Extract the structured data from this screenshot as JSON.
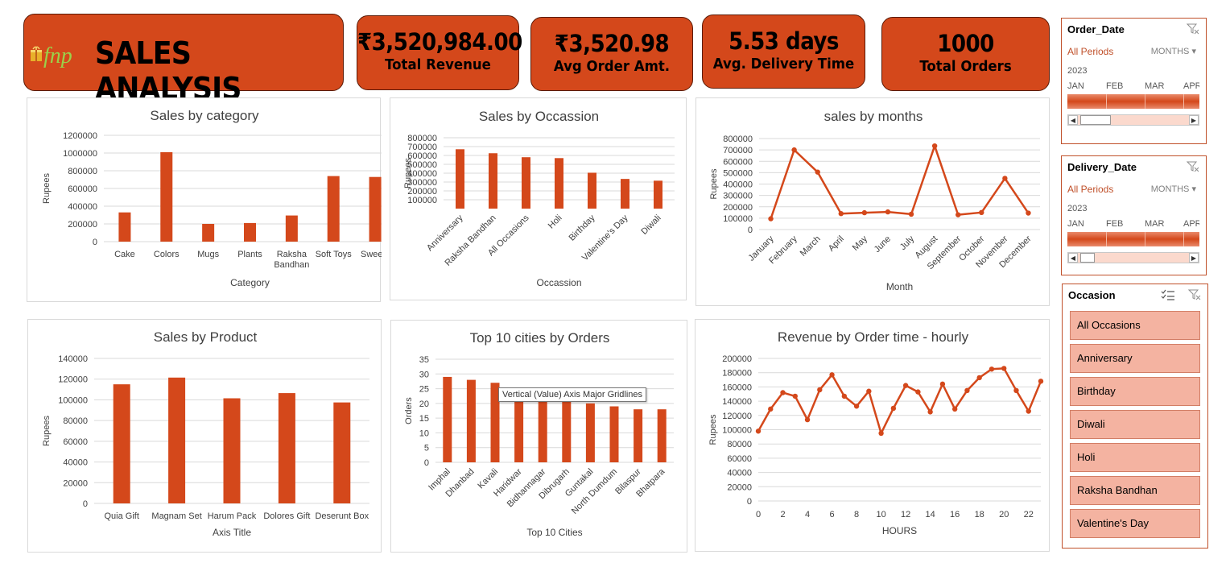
{
  "dashboard": {
    "title": "SALES ANALYSIS",
    "logo_text": "fnp",
    "brand_color": "#d4481b",
    "kpis": [
      {
        "value": "₹3,520,984.00",
        "label": "Total Revenue"
      },
      {
        "value": "₹3,520.98",
        "label": "Avg Order Amt."
      },
      {
        "value": "5.53 days",
        "label": "Avg. Delivery Time"
      },
      {
        "value": "1000",
        "label": "Total Orders"
      }
    ]
  },
  "slicers": {
    "order_date": {
      "header": "Order_Date",
      "period": "All Periods",
      "unit": "MONTHS",
      "year": "2023",
      "months": [
        "JAN",
        "FEB",
        "MAR",
        "APR"
      ],
      "icon": "clear-filter-icon"
    },
    "delivery_date": {
      "header": "Delivery_Date",
      "period": "All Periods",
      "unit": "MONTHS",
      "year": "2023",
      "months": [
        "JAN",
        "FEB",
        "MAR",
        "APR"
      ],
      "icon": "clear-filter-icon"
    },
    "occasion": {
      "header": "Occasion",
      "items": [
        "All Occasions",
        "Anniversary",
        "Birthday",
        "Diwali",
        "Holi",
        "Raksha Bandhan",
        "Valentine's Day"
      ],
      "icons": [
        "multi-select-icon",
        "clear-filter-icon"
      ]
    }
  },
  "tooltip": {
    "text": "Vertical (Value) Axis Major Gridlines"
  },
  "chart_data": [
    {
      "id": "cat",
      "type": "bar",
      "title": "Sales by category",
      "xlabel": "Category",
      "ylabel": "Rupees",
      "categories": [
        "Cake",
        "Colors",
        "Mugs",
        "Plants",
        "Raksha Bandhan",
        "Soft Toys",
        "Sweets"
      ],
      "values": [
        330000,
        1010000,
        200000,
        210000,
        295000,
        740000,
        730000
      ],
      "ylim": [
        0,
        1200000
      ],
      "yticks": [
        0,
        200000,
        400000,
        600000,
        800000,
        1000000,
        1200000
      ],
      "grid": true
    },
    {
      "id": "occ",
      "type": "bar",
      "title": "Sales by Occassion",
      "xlabel": "Occassion",
      "ylabel": "Rupees",
      "categories": [
        "Anniversary",
        "Raksha Bandhan",
        "All Occasions",
        "Holi",
        "Birthday",
        "Valentine's Day",
        "Diwali"
      ],
      "values": [
        670000,
        625000,
        580000,
        570000,
        405000,
        335000,
        315000
      ],
      "ylim": [
        0,
        800000
      ],
      "yticks": [
        100000,
        200000,
        300000,
        400000,
        500000,
        600000,
        700000,
        800000
      ],
      "grid": true
    },
    {
      "id": "mon",
      "type": "line",
      "title": "sales by months",
      "xlabel": "Month",
      "ylabel": "Rupees",
      "categories": [
        "January",
        "February",
        "March",
        "April",
        "May",
        "June",
        "July",
        "August",
        "September",
        "October",
        "November",
        "December"
      ],
      "values": [
        95000,
        700000,
        505000,
        140000,
        148000,
        155000,
        135000,
        735000,
        130000,
        150000,
        450000,
        145000
      ],
      "ylim": [
        0,
        800000
      ],
      "yticks": [
        0,
        100000,
        200000,
        300000,
        400000,
        500000,
        600000,
        700000,
        800000
      ],
      "grid": true
    },
    {
      "id": "prod",
      "type": "bar",
      "title": "Sales by Product",
      "xlabel": "Axis Title",
      "ylabel": "Rupees",
      "categories": [
        "Quia Gift",
        "Magnam Set",
        "Harum Pack",
        "Dolores Gift",
        "Deserunt Box"
      ],
      "values": [
        115000,
        121500,
        101500,
        106500,
        97500
      ],
      "ylim": [
        0,
        140000
      ],
      "yticks": [
        0,
        20000,
        40000,
        60000,
        80000,
        100000,
        120000,
        140000
      ],
      "grid": true
    },
    {
      "id": "city",
      "type": "bar",
      "title": "Top 10 cities by Orders",
      "xlabel": "Top 10 Cities",
      "ylabel": "Orders",
      "categories": [
        "Imphal",
        "Dhanbad",
        "Kavali",
        "Haridwar",
        "Bidhannagar",
        "Dibrugarh",
        "Guntakal",
        "North Dumdum",
        "Bilaspur",
        "Bhatpara"
      ],
      "values": [
        29,
        28,
        27,
        24,
        22,
        21,
        20,
        19,
        18,
        18
      ],
      "ylim": [
        0,
        35
      ],
      "yticks": [
        0,
        5,
        10,
        15,
        20,
        25,
        30,
        35
      ],
      "grid": true
    },
    {
      "id": "hour",
      "type": "line",
      "title": "Revenue by Order time - hourly",
      "xlabel": "HOURS",
      "ylabel": "Rupees",
      "x": [
        0,
        1,
        2,
        3,
        4,
        5,
        6,
        7,
        8,
        9,
        10,
        11,
        12,
        13,
        14,
        15,
        16,
        17,
        18,
        19,
        20,
        21,
        22,
        23
      ],
      "values": [
        98000,
        129000,
        152000,
        147000,
        114000,
        156000,
        177000,
        147000,
        133000,
        154000,
        95000,
        130000,
        162000,
        153000,
        125000,
        164000,
        129000,
        155000,
        173000,
        185000,
        186000,
        155000,
        126000,
        168000
      ],
      "xticks": [
        0,
        2,
        4,
        6,
        8,
        10,
        12,
        14,
        16,
        18,
        20,
        22
      ],
      "ylim": [
        0,
        200000
      ],
      "yticks": [
        0,
        20000,
        40000,
        60000,
        80000,
        100000,
        120000,
        140000,
        160000,
        180000,
        200000
      ],
      "grid": true
    }
  ]
}
